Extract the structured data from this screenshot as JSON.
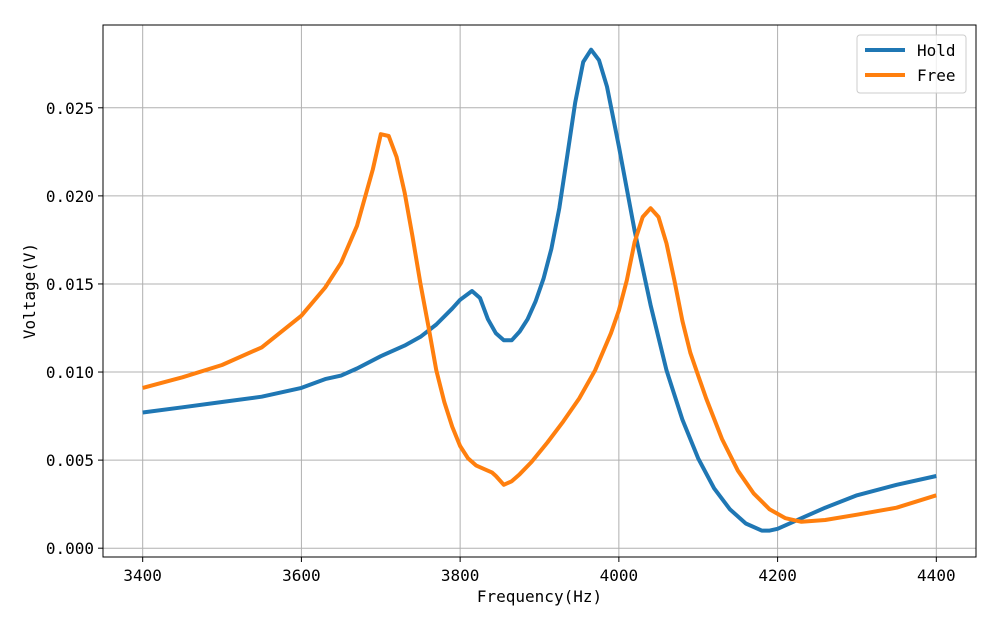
{
  "chart_data": {
    "type": "line",
    "title": "",
    "xlabel": "Frequency(Hz)",
    "ylabel": "Voltage(V)",
    "xlim": [
      3350,
      4450
    ],
    "ylim": [
      -0.0005,
      0.0297
    ],
    "xticks": [
      3400,
      3600,
      3800,
      4000,
      4200,
      4400
    ],
    "xtick_labels": [
      "3400",
      "3600",
      "3800",
      "4000",
      "4200",
      "4400"
    ],
    "yticks": [
      0.0,
      0.005,
      0.01,
      0.015,
      0.02,
      0.025
    ],
    "ytick_labels": [
      "0.000",
      "0.005",
      "0.010",
      "0.015",
      "0.020",
      "0.025"
    ],
    "grid": true,
    "legend_position": "top-right",
    "series": [
      {
        "name": "Hold",
        "color": "#1f77b4",
        "x": [
          3400,
          3450,
          3500,
          3550,
          3600,
          3630,
          3650,
          3670,
          3700,
          3730,
          3750,
          3770,
          3790,
          3800,
          3815,
          3825,
          3835,
          3845,
          3855,
          3865,
          3875,
          3885,
          3895,
          3905,
          3915,
          3925,
          3935,
          3945,
          3955,
          3965,
          3975,
          3985,
          4000,
          4020,
          4040,
          4060,
          4080,
          4100,
          4120,
          4140,
          4160,
          4180,
          4190,
          4200,
          4210,
          4230,
          4260,
          4300,
          4350,
          4400
        ],
        "y": [
          0.0077,
          0.008,
          0.0083,
          0.0086,
          0.0091,
          0.0096,
          0.0098,
          0.0102,
          0.0109,
          0.0115,
          0.012,
          0.0127,
          0.0136,
          0.0141,
          0.0146,
          0.0142,
          0.013,
          0.0122,
          0.0118,
          0.0118,
          0.0123,
          0.013,
          0.014,
          0.0153,
          0.017,
          0.0193,
          0.0223,
          0.0253,
          0.0276,
          0.0283,
          0.0277,
          0.0262,
          0.0228,
          0.018,
          0.0138,
          0.0101,
          0.0073,
          0.0051,
          0.0034,
          0.0022,
          0.0014,
          0.001,
          0.001,
          0.0011,
          0.0013,
          0.0017,
          0.0023,
          0.003,
          0.0036,
          0.0041
        ]
      },
      {
        "name": "Free",
        "color": "#ff7f0e",
        "x": [
          3400,
          3450,
          3500,
          3550,
          3600,
          3630,
          3650,
          3670,
          3690,
          3700,
          3710,
          3720,
          3730,
          3740,
          3750,
          3760,
          3770,
          3780,
          3790,
          3800,
          3810,
          3820,
          3830,
          3840,
          3845,
          3855,
          3865,
          3875,
          3890,
          3910,
          3930,
          3950,
          3970,
          3990,
          4000,
          4010,
          4020,
          4030,
          4040,
          4050,
          4060,
          4070,
          4080,
          4090,
          4100,
          4110,
          4130,
          4150,
          4170,
          4190,
          4210,
          4230,
          4260,
          4300,
          4350,
          4400
        ],
        "y": [
          0.0091,
          0.0097,
          0.0104,
          0.0114,
          0.0132,
          0.0148,
          0.0162,
          0.0183,
          0.0215,
          0.0235,
          0.0234,
          0.0222,
          0.0202,
          0.0177,
          0.015,
          0.0126,
          0.0101,
          0.0083,
          0.0069,
          0.0058,
          0.0051,
          0.0047,
          0.0045,
          0.0043,
          0.0041,
          0.0036,
          0.0038,
          0.0042,
          0.0049,
          0.006,
          0.0072,
          0.0085,
          0.0101,
          0.0122,
          0.0135,
          0.0152,
          0.0174,
          0.0188,
          0.0193,
          0.0188,
          0.0173,
          0.0152,
          0.0129,
          0.0111,
          0.0098,
          0.0085,
          0.0062,
          0.0044,
          0.0031,
          0.0022,
          0.0017,
          0.0015,
          0.0016,
          0.0019,
          0.0023,
          0.003
        ]
      }
    ]
  }
}
